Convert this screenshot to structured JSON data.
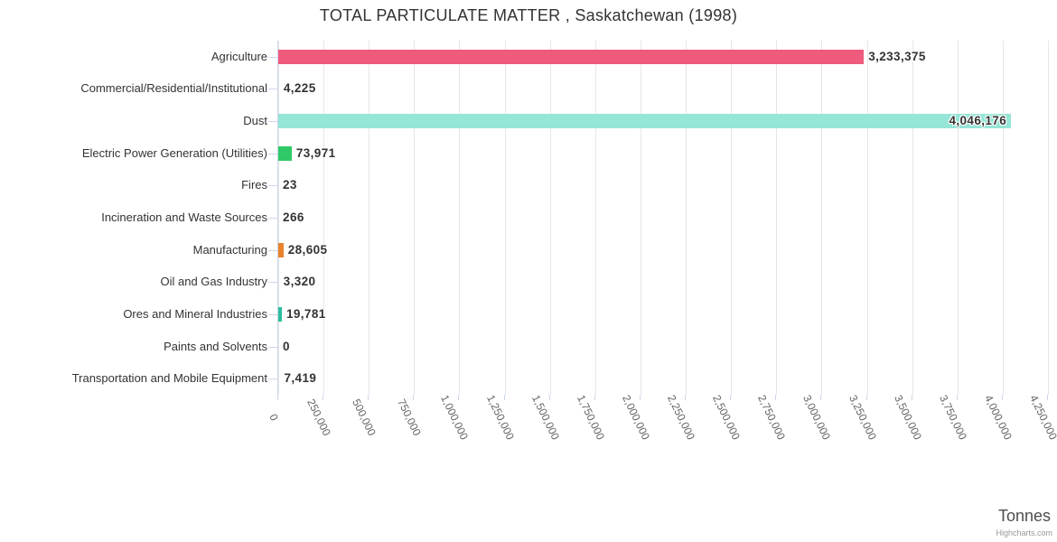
{
  "header": {
    "title": "TOTAL PARTICULATE MATTER , Saskatchewan (1998)"
  },
  "chart_data": {
    "type": "bar",
    "orientation": "horizontal",
    "title": "TOTAL PARTICULATE MATTER , Saskatchewan (1998)",
    "categories": [
      "Agriculture",
      "Commercial/Residential/Institutional",
      "Dust",
      "Electric Power Generation (Utilities)",
      "Fires",
      "Incineration and Waste Sources",
      "Manufacturing",
      "Oil and Gas Industry",
      "Ores and Mineral Industries",
      "Paints and Solvents",
      "Transportation and Mobile Equipment"
    ],
    "values": [
      3233375,
      4225,
      4046176,
      73971,
      23,
      266,
      28605,
      3320,
      19781,
      0,
      7419
    ],
    "value_labels": [
      "3,233,375",
      "4,225",
      "4,046,176",
      "73,971",
      "23",
      "266",
      "28,605",
      "3,320",
      "19,781",
      "0",
      "7,419"
    ],
    "bar_colors": [
      "#ef5b7d",
      null,
      "#95e6d6",
      "#2fc968",
      null,
      null,
      "#e8832c",
      null,
      "#2bbf9e",
      null,
      null
    ],
    "label_inside_index": 2,
    "xlabel": "Tonnes",
    "legend": "none",
    "grid": true,
    "axis": {
      "min": 0,
      "max": 4250000,
      "tick_interval": 250000,
      "tick_labels": [
        "0",
        "250,000",
        "500,000",
        "750,000",
        "1,000,000",
        "1,250,000",
        "1,500,000",
        "1,750,000",
        "2,000,000",
        "2,250,000",
        "2,500,000",
        "2,750,000",
        "3,000,000",
        "3,250,000",
        "3,500,000",
        "3,750,000",
        "4,000,000",
        "4,250,000"
      ]
    },
    "credits": "Highcharts.com",
    "colors": {
      "grid_line": "#e6e6e6",
      "axis_line": "#ccd6eb",
      "title_text": "#333333",
      "category_text": "#333333",
      "tick_text": "#666666",
      "data_label_text": "#333333",
      "axis_title_text": "#4d4d4d",
      "credits_text": "#999999"
    }
  }
}
